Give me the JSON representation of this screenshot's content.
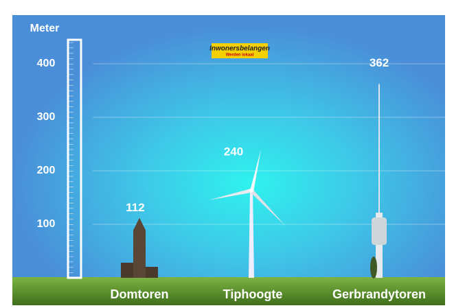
{
  "chart_data": {
    "type": "pictogram",
    "y_label": "Meter",
    "annotations": [
      "Inwonersbelangen",
      "Werden lokaal"
    ],
    "categories": [
      "Domtoren",
      "Tiphoogte",
      "Gerbrandytoren"
    ],
    "values": [
      112,
      240,
      362
    ],
    "ylim": [
      0,
      490
    ],
    "yticks": [
      100,
      200,
      300,
      400
    ],
    "grid": true
  }
}
